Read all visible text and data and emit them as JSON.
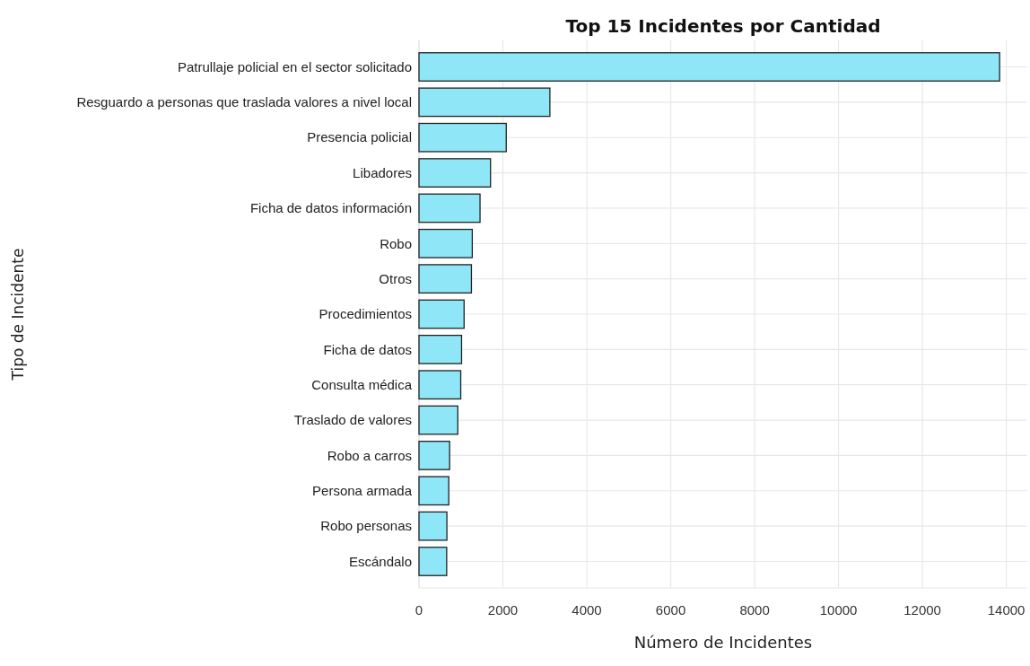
{
  "chart_data": {
    "type": "bar",
    "orientation": "horizontal",
    "title": "Top 15 Incidentes por Cantidad",
    "xlabel": "Número de Incidentes",
    "ylabel": "Tipo de Incidente",
    "categories": [
      "Patrullaje policial en el sector solicitado",
      "Resguardo a personas que traslada valores a nivel local",
      "Presencia policial",
      "Libadores",
      "Ficha de datos información",
      "Robo",
      "Otros",
      "Procedimientos",
      "Ficha de datos",
      "Consulta médica",
      "Traslado de valores",
      "Robo a carros",
      "Persona armada",
      "Robo personas",
      "Escándalo"
    ],
    "values": [
      13840,
      3120,
      2080,
      1705,
      1455,
      1270,
      1250,
      1075,
      1015,
      995,
      925,
      730,
      710,
      665,
      660
    ],
    "color": "#8ee6f6",
    "xlim": [
      0,
      14500
    ],
    "xticks": [
      0,
      2000,
      4000,
      6000,
      8000,
      10000,
      12000,
      14000
    ],
    "grid": true
  }
}
